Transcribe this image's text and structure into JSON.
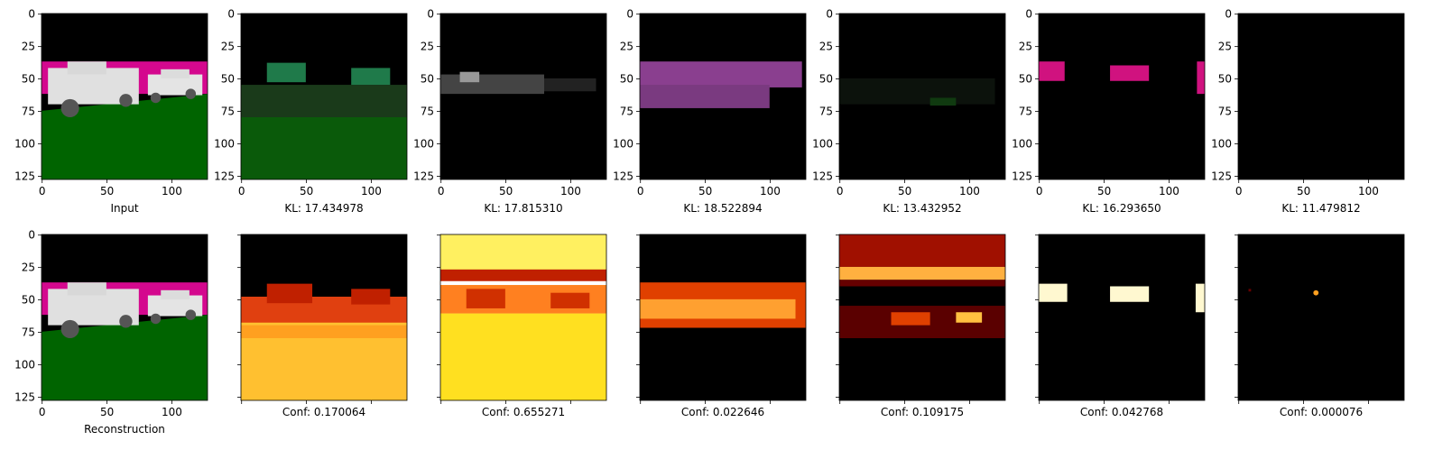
{
  "chart_data": [
    {
      "type": "image",
      "xlabel": "Input",
      "xlim": [
        -0.5,
        127.5
      ],
      "ylim": [
        127.5,
        -0.5
      ],
      "xticks": [
        0,
        50,
        100
      ],
      "yticks": [
        0,
        25,
        50,
        75,
        100,
        125
      ]
    },
    {
      "type": "image",
      "xlabel": "KL: 17.434978",
      "xlim": [
        -0.5,
        127.5
      ],
      "ylim": [
        127.5,
        -0.5
      ],
      "xticks": [
        0,
        50,
        100
      ],
      "yticks": [
        0,
        25,
        50,
        75,
        100,
        125
      ]
    },
    {
      "type": "image",
      "xlabel": "KL: 17.815310",
      "xlim": [
        -0.5,
        127.5
      ],
      "ylim": [
        127.5,
        -0.5
      ],
      "xticks": [
        0,
        50,
        100
      ],
      "yticks": [
        0,
        25,
        50,
        75,
        100,
        125
      ]
    },
    {
      "type": "image",
      "xlabel": "KL: 18.522894",
      "xlim": [
        -0.5,
        127.5
      ],
      "ylim": [
        127.5,
        -0.5
      ],
      "xticks": [
        0,
        50,
        100
      ],
      "yticks": [
        0,
        25,
        50,
        75,
        100,
        125
      ]
    },
    {
      "type": "image",
      "xlabel": "KL: 13.432952",
      "xlim": [
        -0.5,
        127.5
      ],
      "ylim": [
        127.5,
        -0.5
      ],
      "xticks": [
        0,
        50,
        100
      ],
      "yticks": [
        0,
        25,
        50,
        75,
        100,
        125
      ]
    },
    {
      "type": "image",
      "xlabel": "KL: 16.293650",
      "xlim": [
        -0.5,
        127.5
      ],
      "ylim": [
        127.5,
        -0.5
      ],
      "xticks": [
        0,
        50,
        100
      ],
      "yticks": [
        0,
        25,
        50,
        75,
        100,
        125
      ]
    },
    {
      "type": "image",
      "xlabel": "KL: 11.479812",
      "xlim": [
        -0.5,
        127.5
      ],
      "ylim": [
        127.5,
        -0.5
      ],
      "xticks": [
        0,
        50,
        100
      ],
      "yticks": [
        0,
        25,
        50,
        75,
        100,
        125
      ]
    },
    {
      "type": "image",
      "xlabel": "Reconstruction",
      "xlim": [
        -0.5,
        127.5
      ],
      "ylim": [
        127.5,
        -0.5
      ],
      "xticks": [
        0,
        50,
        100
      ],
      "yticks": [
        0,
        25,
        50,
        75,
        100,
        125
      ]
    },
    {
      "type": "image",
      "cmap": "hot",
      "tick_labels": false,
      "xlabel": "Conf: 0.170064",
      "xlim": [
        -0.5,
        127.5
      ],
      "ylim": [
        127.5,
        -0.5
      ],
      "xticks": [
        0,
        50,
        100
      ],
      "yticks": [
        0,
        25,
        50,
        75,
        100,
        125
      ]
    },
    {
      "type": "image",
      "cmap": "hot",
      "tick_labels": false,
      "xlabel": "Conf: 0.655271",
      "xlim": [
        -0.5,
        127.5
      ],
      "ylim": [
        127.5,
        -0.5
      ],
      "xticks": [
        0,
        50,
        100
      ],
      "yticks": [
        0,
        25,
        50,
        75,
        100,
        125
      ]
    },
    {
      "type": "image",
      "cmap": "hot",
      "tick_labels": false,
      "xlabel": "Conf: 0.022646",
      "xlim": [
        -0.5,
        127.5
      ],
      "ylim": [
        127.5,
        -0.5
      ],
      "xticks": [
        0,
        50,
        100
      ],
      "yticks": [
        0,
        25,
        50,
        75,
        100,
        125
      ]
    },
    {
      "type": "image",
      "cmap": "hot",
      "tick_labels": false,
      "xlabel": "Conf: 0.109175",
      "xlim": [
        -0.5,
        127.5
      ],
      "ylim": [
        127.5,
        -0.5
      ],
      "xticks": [
        0,
        50,
        100
      ],
      "yticks": [
        0,
        25,
        50,
        75,
        100,
        125
      ]
    },
    {
      "type": "image",
      "cmap": "hot",
      "tick_labels": false,
      "xlabel": "Conf: 0.042768",
      "xlim": [
        -0.5,
        127.5
      ],
      "ylim": [
        127.5,
        -0.5
      ],
      "xticks": [
        0,
        50,
        100
      ],
      "yticks": [
        0,
        25,
        50,
        75,
        100,
        125
      ]
    },
    {
      "type": "image",
      "cmap": "hot",
      "tick_labels": false,
      "xlabel": "Conf: 0.000076",
      "xlim": [
        -0.5,
        127.5
      ],
      "ylim": [
        127.5,
        -0.5
      ],
      "xticks": [
        0,
        50,
        100
      ],
      "yticks": [
        0,
        25,
        50,
        75,
        100,
        125
      ]
    }
  ]
}
